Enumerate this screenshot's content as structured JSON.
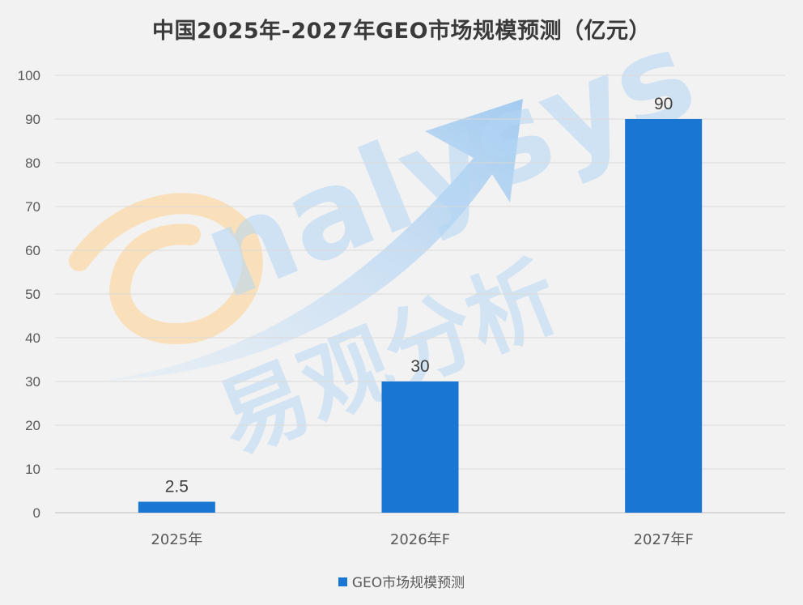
{
  "chart_data": {
    "type": "bar",
    "title": "中国2025年-2027年GEO市场规模预测（亿元）",
    "categories": [
      "2025年",
      "2026年F",
      "2027年F"
    ],
    "series": [
      {
        "name": "GEO市场规模预测",
        "values": [
          2.5,
          30,
          90
        ],
        "color": "#1976d2"
      }
    ],
    "data_labels": [
      "2.5",
      "30",
      "90"
    ],
    "ylim": [
      0,
      100
    ],
    "yticks": [
      0,
      10,
      20,
      30,
      40,
      50,
      60,
      70,
      80,
      90,
      100
    ],
    "grid": true,
    "legend_position": "bottom",
    "xlabel": "",
    "ylabel": ""
  },
  "watermark": {
    "latin_text": "nalysys",
    "cjk_text": "易观分析"
  },
  "colors": {
    "background": "#f2f2f2",
    "bar": "#1976d2",
    "grid": "#d9d9d9",
    "watermark_blue": "#b3d6f5",
    "watermark_orange": "#fbd9a8"
  }
}
